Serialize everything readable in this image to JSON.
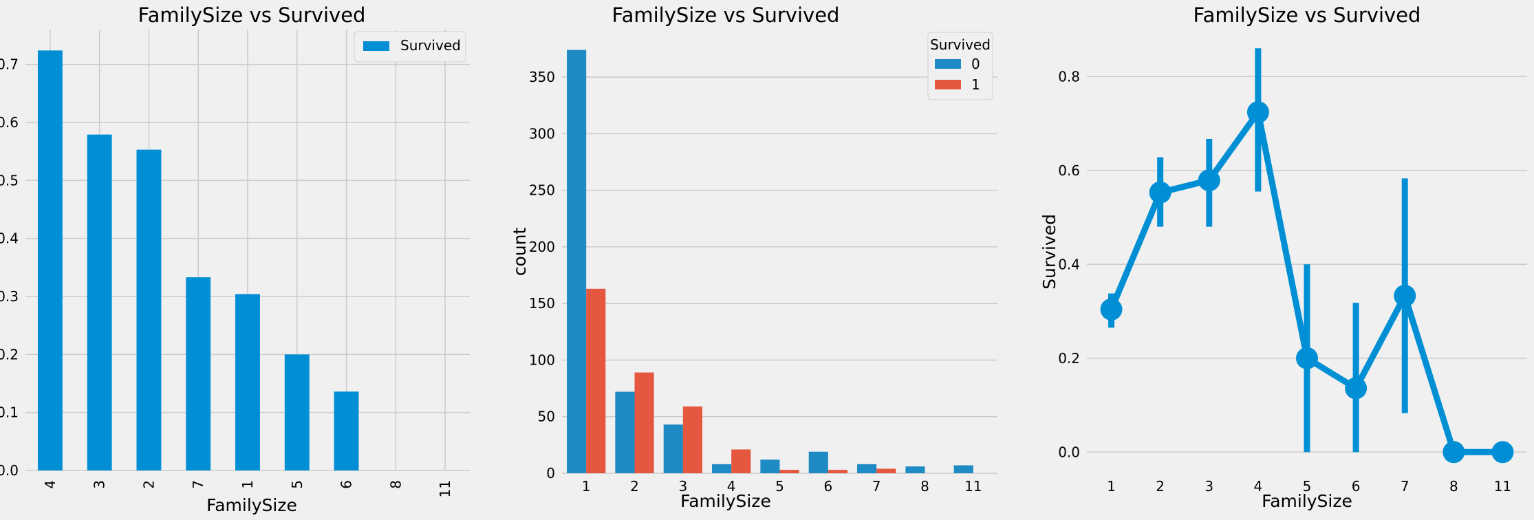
{
  "chart_data": [
    {
      "type": "bar",
      "title": "FamilySize vs Survived",
      "xlabel": "FamilySize",
      "ylabel": "",
      "categories": [
        "4",
        "3",
        "2",
        "7",
        "1",
        "5",
        "6",
        "8",
        "11"
      ],
      "series": [
        {
          "name": "Survived",
          "values": [
            0.724,
            0.579,
            0.553,
            0.333,
            0.304,
            0.2,
            0.136,
            0.0,
            0.0
          ]
        }
      ],
      "ylim": [
        0,
        0.76
      ],
      "yticks": [
        "0.0",
        "0.1",
        "0.2",
        "0.3",
        "0.4",
        "0.5",
        "0.6",
        "0.7"
      ],
      "legend": "top-right",
      "grid": true,
      "colors": [
        "#008fd5"
      ]
    },
    {
      "type": "bar",
      "title": "FamilySize vs Survived",
      "xlabel": "FamilySize",
      "ylabel": "count",
      "categories": [
        "1",
        "2",
        "3",
        "4",
        "5",
        "6",
        "7",
        "8",
        "11"
      ],
      "legend_title": "Survived",
      "series": [
        {
          "name": "0",
          "values": [
            374,
            72,
            43,
            8,
            12,
            19,
            8,
            6,
            7
          ]
        },
        {
          "name": "1",
          "values": [
            163,
            89,
            59,
            21,
            3,
            3,
            4,
            0,
            0
          ]
        }
      ],
      "ylim": [
        0,
        392
      ],
      "yticks": [
        "0",
        "50",
        "100",
        "150",
        "200",
        "250",
        "300",
        "350"
      ],
      "legend": "top-right",
      "grid": true,
      "colors": [
        "#1f8bc4",
        "#e5573f"
      ]
    },
    {
      "type": "line",
      "title": "FamilySize vs Survived",
      "xlabel": "FamilySize",
      "ylabel": "Survived",
      "categories": [
        "1",
        "2",
        "3",
        "4",
        "5",
        "6",
        "7",
        "8",
        "11"
      ],
      "series": [
        {
          "values": [
            0.304,
            0.553,
            0.579,
            0.724,
            0.2,
            0.136,
            0.333,
            0.0,
            0.0
          ],
          "ci_low": [
            0.265,
            0.48,
            0.48,
            0.555,
            0.0,
            0.0,
            0.083,
            0.0,
            0.0
          ],
          "ci_high": [
            0.338,
            0.628,
            0.667,
            0.86,
            0.4,
            0.318,
            0.583,
            0.0,
            0.0
          ]
        }
      ],
      "ylim": [
        -0.045,
        0.9
      ],
      "yticks": [
        "0.0",
        "0.2",
        "0.4",
        "0.6",
        "0.8"
      ],
      "grid": true,
      "colors": [
        "#008fd5"
      ]
    }
  ]
}
